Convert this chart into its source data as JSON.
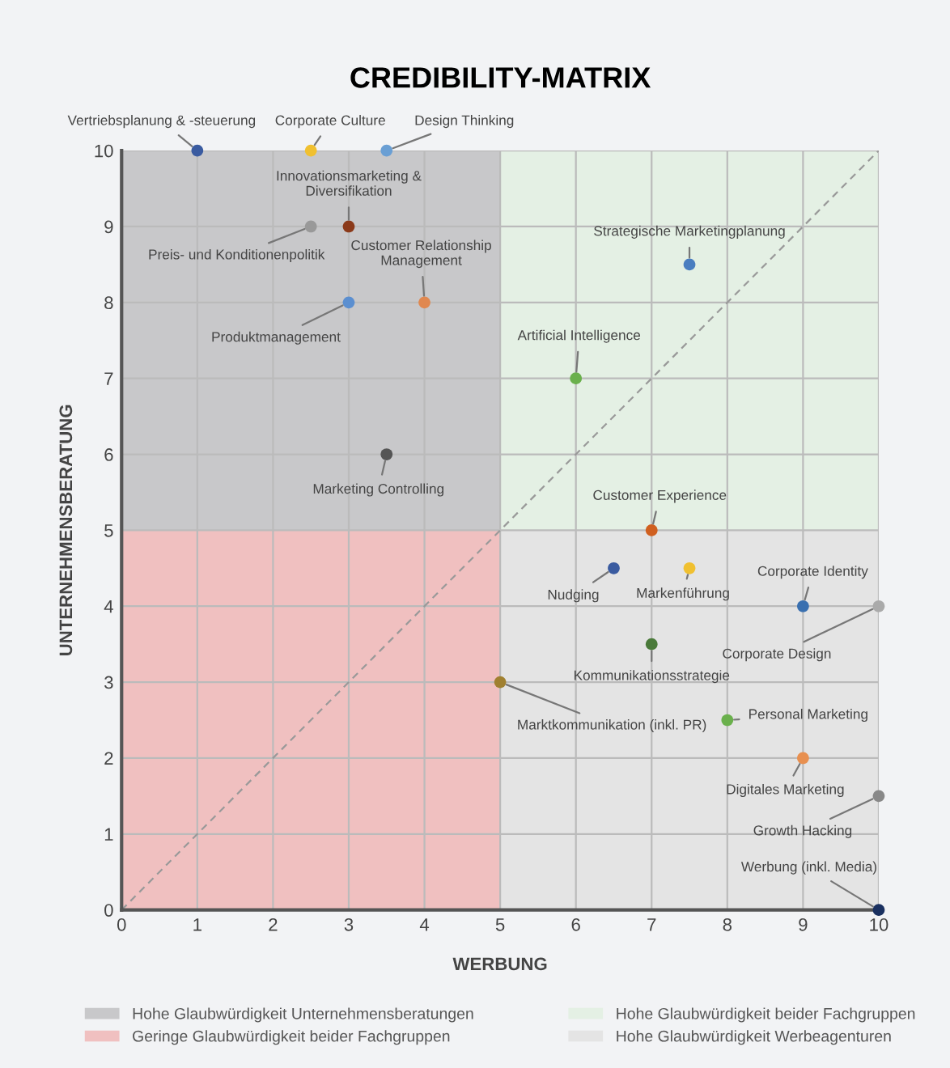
{
  "chart_data": {
    "type": "scatter",
    "title": "CREDIBILITY-MATRIX",
    "xlabel": "WERBUNG",
    "ylabel": "UNTERNEHMENSBERATUNG",
    "xlim": [
      0,
      10
    ],
    "ylim": [
      0,
      10
    ],
    "xticks": [
      0,
      1,
      2,
      3,
      4,
      5,
      6,
      7,
      8,
      9,
      10
    ],
    "yticks": [
      0,
      1,
      2,
      3,
      4,
      5,
      6,
      7,
      8,
      9,
      10
    ],
    "grid": true,
    "legend": "bottom",
    "series": [
      {
        "type": "bar",
        "name": "Hohe Glaubwürdigkeit Unternehmensberatungen",
        "color": "#c8c8ca",
        "x": [
          2.5
        ],
        "values": [
          5
        ],
        "base": [
          5
        ]
      },
      {
        "type": "bar",
        "name": "Geringe Glaubwürdigkeit beider Fachgruppen",
        "color": "#f0c0c0",
        "x": [
          2.5
        ],
        "values": [
          5
        ],
        "base": [
          0
        ]
      },
      {
        "type": "bar",
        "name": "Hohe Glaubwürdigkeit beider Fachgruppen",
        "color": "#e4f0e4",
        "x": [
          7.5
        ],
        "values": [
          5
        ],
        "base": [
          5
        ]
      },
      {
        "type": "bar",
        "name": "Hohe Glaubwürdigkeit Werbeagenturen",
        "color": "#e4e4e4",
        "x": [
          7.5
        ],
        "values": [
          5
        ],
        "base": [
          0
        ]
      },
      {
        "type": "line",
        "x": [
          0,
          10
        ],
        "values": [
          0,
          10
        ],
        "color": "#999999",
        "line_style": "dashed"
      },
      {
        "type": "scatter",
        "marker": "circle",
        "x": [
          1,
          2.5,
          3.5,
          3,
          2.5,
          4,
          3,
          3.5,
          7.5,
          6,
          7,
          6.5,
          7.5,
          9,
          10,
          7,
          5,
          8,
          9,
          10,
          10
        ],
        "values": [
          10,
          10,
          10,
          9,
          9,
          8,
          8,
          6,
          8.5,
          7,
          5,
          4.5,
          4.5,
          4,
          4,
          3.5,
          3,
          2.5,
          2,
          1.5,
          0
        ],
        "colors": [
          "#3a5ba0",
          "#f0c030",
          "#6a9fd4",
          "#8b3a1a",
          "#999999",
          "#e08850",
          "#5b8fd0",
          "#555555",
          "#4a7ec0",
          "#6ab04c",
          "#d06020",
          "#3a5ba0",
          "#f0c030",
          "#3a70b0",
          "#aaaaaa",
          "#4a7a3a",
          "#a08030",
          "#6ab04c",
          "#e89050",
          "#888888",
          "#1a3060"
        ]
      }
    ],
    "annotations": [
      {
        "text": "Vertriebsplanung & -steuerung",
        "x": 1,
        "y": 10
      },
      {
        "text": "Corporate Culture",
        "x": 2.5,
        "y": 10
      },
      {
        "text": "Design Thinking",
        "x": 3.5,
        "y": 10
      },
      {
        "text": "Innovationsmarketing &\nDiversifikation",
        "x": 3,
        "y": 9
      },
      {
        "text": "Preis- und Konditionenpolitik",
        "x": 2.5,
        "y": 9
      },
      {
        "text": "Customer Relationship\nManagement",
        "x": 4,
        "y": 8
      },
      {
        "text": "Produktmanagement",
        "x": 3,
        "y": 8
      },
      {
        "text": "Marketing Controlling",
        "x": 3.5,
        "y": 6
      },
      {
        "text": "Strategische Marketingplanung",
        "x": 7.5,
        "y": 8.5
      },
      {
        "text": "Artificial Intelligence",
        "x": 6,
        "y": 7
      },
      {
        "text": "Customer Experience",
        "x": 7,
        "y": 5
      },
      {
        "text": "Nudging",
        "x": 6.5,
        "y": 4.5
      },
      {
        "text": "Markenführung",
        "x": 7.5,
        "y": 4.5
      },
      {
        "text": "Corporate Identity",
        "x": 9,
        "y": 4
      },
      {
        "text": "Corporate Design",
        "x": 10,
        "y": 4
      },
      {
        "text": "Kommunikationsstrategie",
        "x": 7,
        "y": 3.5
      },
      {
        "text": "Marktkommunikation (inkl. PR)",
        "x": 5,
        "y": 3
      },
      {
        "text": "Personal Marketing",
        "x": 8,
        "y": 2.5
      },
      {
        "text": "Digitales Marketing",
        "x": 9,
        "y": 2
      },
      {
        "text": "Growth Hacking",
        "x": 10,
        "y": 1.5
      },
      {
        "text": "Werbung (inkl. Media)",
        "x": 10,
        "y": 0
      }
    ]
  }
}
